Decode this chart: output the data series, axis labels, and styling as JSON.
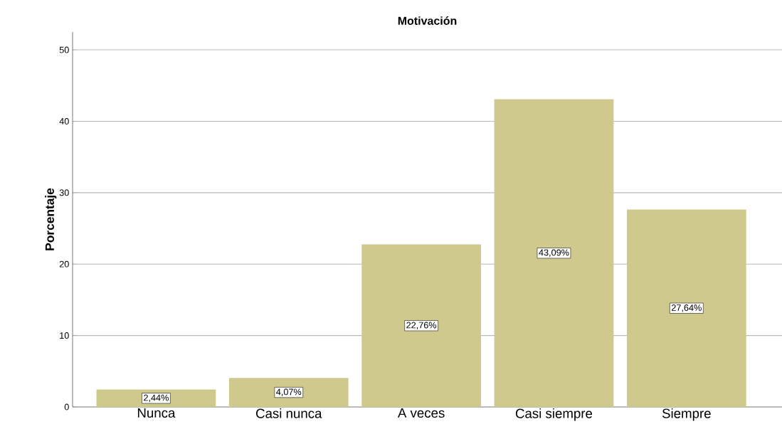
{
  "chart_data": {
    "type": "bar",
    "title": "Motivación",
    "ylabel": "Porcentaje",
    "categories": [
      "Nunca",
      "Casi nunca",
      "A veces",
      "Casi siempre",
      "Siempre"
    ],
    "values": [
      2.44,
      4.07,
      22.76,
      43.09,
      27.64
    ],
    "value_labels": [
      "2,44%",
      "4,07%",
      "22,76%",
      "43,09%",
      "27,64%"
    ],
    "color": "#d0c98e",
    "ylim": [
      0,
      52.5
    ],
    "yticks": [
      0,
      10,
      20,
      30,
      40,
      50
    ],
    "grid": "y"
  }
}
